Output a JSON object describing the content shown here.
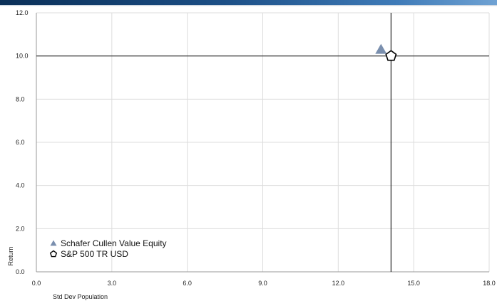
{
  "chart_data": {
    "type": "scatter",
    "xlabel": "Std Dev Population",
    "ylabel": "Return",
    "xlim": [
      0,
      18
    ],
    "ylim": [
      0,
      12
    ],
    "x_ticks": [
      "0.0",
      "3.0",
      "6.0",
      "9.0",
      "12.0",
      "15.0",
      "18.0"
    ],
    "y_ticks": [
      "0.0",
      "2.0",
      "4.0",
      "6.0",
      "8.0",
      "10.0",
      "12.0"
    ],
    "grid": true,
    "legend_position": "bottom-left",
    "crosshair": {
      "x": 14.1,
      "y": 10.0
    },
    "series": [
      {
        "name": "Schafer Cullen Value Equity",
        "marker": "triangle",
        "color": "#7a8fae",
        "x": 13.7,
        "y": 10.3
      },
      {
        "name": "S&P 500 TR USD",
        "marker": "pentagon",
        "color": "#000000",
        "x": 14.1,
        "y": 10.0
      }
    ]
  }
}
